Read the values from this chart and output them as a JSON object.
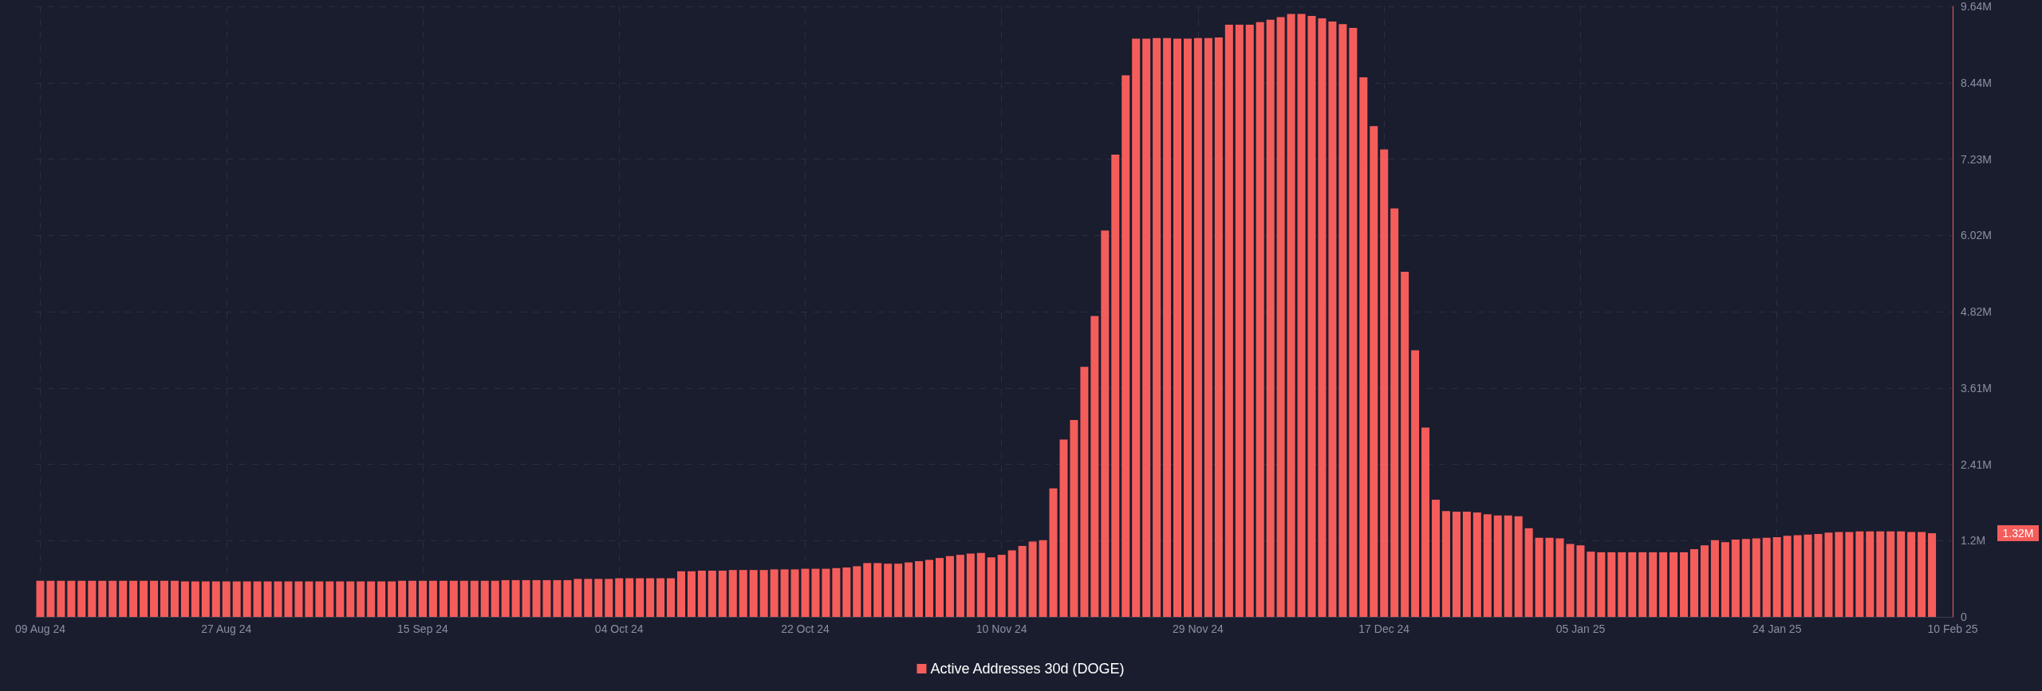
{
  "chart_data": {
    "type": "bar",
    "x": [
      "2024-08-09",
      "2024-08-10",
      "2024-08-11",
      "2024-08-12",
      "2024-08-13",
      "2024-08-14",
      "2024-08-15",
      "2024-08-16",
      "2024-08-17",
      "2024-08-18",
      "2024-08-19",
      "2024-08-20",
      "2024-08-21",
      "2024-08-22",
      "2024-08-23",
      "2024-08-24",
      "2024-08-25",
      "2024-08-26",
      "2024-08-27",
      "2024-08-28",
      "2024-08-29",
      "2024-08-30",
      "2024-08-31",
      "2024-09-01",
      "2024-09-02",
      "2024-09-03",
      "2024-09-04",
      "2024-09-05",
      "2024-09-06",
      "2024-09-07",
      "2024-09-08",
      "2024-09-09",
      "2024-09-10",
      "2024-09-11",
      "2024-09-12",
      "2024-09-13",
      "2024-09-14",
      "2024-09-15",
      "2024-09-16",
      "2024-09-17",
      "2024-09-18",
      "2024-09-19",
      "2024-09-20",
      "2024-09-21",
      "2024-09-22",
      "2024-09-23",
      "2024-09-24",
      "2024-09-25",
      "2024-09-26",
      "2024-09-27",
      "2024-09-28",
      "2024-09-29",
      "2024-09-30",
      "2024-10-01",
      "2024-10-02",
      "2024-10-03",
      "2024-10-04",
      "2024-10-05",
      "2024-10-06",
      "2024-10-07",
      "2024-10-08",
      "2024-10-09",
      "2024-10-10",
      "2024-10-11",
      "2024-10-12",
      "2024-10-13",
      "2024-10-14",
      "2024-10-15",
      "2024-10-16",
      "2024-10-17",
      "2024-10-18",
      "2024-10-19",
      "2024-10-20",
      "2024-10-21",
      "2024-10-22",
      "2024-10-23",
      "2024-10-24",
      "2024-10-25",
      "2024-10-26",
      "2024-10-27",
      "2024-10-28",
      "2024-10-29",
      "2024-10-30",
      "2024-10-31",
      "2024-11-01",
      "2024-11-02",
      "2024-11-03",
      "2024-11-04",
      "2024-11-05",
      "2024-11-06",
      "2024-11-07",
      "2024-11-08",
      "2024-11-09",
      "2024-11-10",
      "2024-11-11",
      "2024-11-12",
      "2024-11-13",
      "2024-11-14",
      "2024-11-15",
      "2024-11-16",
      "2024-11-17",
      "2024-11-18",
      "2024-11-19",
      "2024-11-20",
      "2024-11-21",
      "2024-11-22",
      "2024-11-23",
      "2024-11-24",
      "2024-11-25",
      "2024-11-26",
      "2024-11-27",
      "2024-11-28",
      "2024-11-29",
      "2024-11-30",
      "2024-12-01",
      "2024-12-02",
      "2024-12-03",
      "2024-12-04",
      "2024-12-05",
      "2024-12-06",
      "2024-12-07",
      "2024-12-08",
      "2024-12-09",
      "2024-12-10",
      "2024-12-11",
      "2024-12-12",
      "2024-12-13",
      "2024-12-14",
      "2024-12-15",
      "2024-12-16",
      "2024-12-17",
      "2024-12-18",
      "2024-12-19",
      "2024-12-20",
      "2024-12-21",
      "2024-12-22",
      "2024-12-23",
      "2024-12-24",
      "2024-12-25",
      "2024-12-26",
      "2024-12-27",
      "2024-12-28",
      "2024-12-29",
      "2024-12-30",
      "2024-12-31",
      "2025-01-01",
      "2025-01-02",
      "2025-01-03",
      "2025-01-04",
      "2025-01-05",
      "2025-01-06",
      "2025-01-07",
      "2025-01-08",
      "2025-01-09",
      "2025-01-10",
      "2025-01-11",
      "2025-01-12",
      "2025-01-13",
      "2025-01-14",
      "2025-01-15",
      "2025-01-16",
      "2025-01-17",
      "2025-01-18",
      "2025-01-19",
      "2025-01-20",
      "2025-01-21",
      "2025-01-22",
      "2025-01-23",
      "2025-01-24",
      "2025-01-25",
      "2025-01-26",
      "2025-01-27",
      "2025-01-28",
      "2025-01-29",
      "2025-01-30",
      "2025-01-31",
      "2025-02-01",
      "2025-02-02",
      "2025-02-03",
      "2025-02-04",
      "2025-02-05",
      "2025-02-06",
      "2025-02-07",
      "2025-02-08"
    ],
    "series": [
      {
        "name": "Active Addresses 30d (DOGE)",
        "color": "#f55d5b",
        "values": [
          570000,
          570000,
          570000,
          570000,
          570000,
          570000,
          570000,
          570000,
          570000,
          570000,
          570000,
          570000,
          570000,
          570000,
          560000,
          560000,
          560000,
          560000,
          560000,
          560000,
          560000,
          560000,
          560000,
          560000,
          560000,
          560000,
          560000,
          560000,
          560000,
          560000,
          560000,
          560000,
          560000,
          560000,
          560000,
          570000,
          570000,
          570000,
          570000,
          570000,
          570000,
          570000,
          570000,
          570000,
          570000,
          580000,
          580000,
          580000,
          580000,
          580000,
          580000,
          580000,
          600000,
          600000,
          600000,
          600000,
          610000,
          610000,
          610000,
          610000,
          610000,
          610000,
          720000,
          720000,
          730000,
          730000,
          730000,
          740000,
          740000,
          740000,
          740000,
          750000,
          750000,
          750000,
          760000,
          760000,
          760000,
          770000,
          780000,
          800000,
          850000,
          850000,
          840000,
          840000,
          860000,
          880000,
          900000,
          930000,
          960000,
          980000,
          1000000,
          1010000,
          940000,
          980000,
          1050000,
          1120000,
          1190000,
          1210000,
          2030000,
          2800000,
          3110000,
          3950000,
          4750000,
          6100000,
          7300000,
          8550000,
          9130000,
          9130000,
          9140000,
          9140000,
          9130000,
          9130000,
          9140000,
          9140000,
          9150000,
          9350000,
          9350000,
          9350000,
          9390000,
          9430000,
          9470000,
          9520000,
          9520000,
          9490000,
          9450000,
          9400000,
          9360000,
          9300000,
          8520000,
          7750000,
          7380000,
          6450000,
          5450000,
          4210000,
          2990000,
          1850000,
          1670000,
          1660000,
          1660000,
          1650000,
          1620000,
          1600000,
          1600000,
          1590000,
          1400000,
          1250000,
          1250000,
          1240000,
          1150000,
          1130000,
          1030000,
          1020000,
          1020000,
          1020000,
          1020000,
          1020000,
          1020000,
          1020000,
          1020000,
          1020000,
          1070000,
          1130000,
          1210000,
          1180000,
          1220000,
          1230000,
          1240000,
          1250000,
          1260000,
          1280000,
          1290000,
          1300000,
          1310000,
          1330000,
          1340000,
          1340000,
          1350000,
          1350000,
          1350000,
          1350000,
          1350000,
          1340000,
          1340000,
          1320000
        ]
      }
    ],
    "xlim": [
      "2024-08-08T12:00",
      "2025-02-10"
    ],
    "xticks": [
      {
        "value": "2024-08-09",
        "label": "09 Aug 24"
      },
      {
        "value": "2024-08-27",
        "label": "27 Aug 24"
      },
      {
        "value": "2024-09-15",
        "label": "15 Sep 24"
      },
      {
        "value": "2024-10-04",
        "label": "04 Oct 24"
      },
      {
        "value": "2024-10-22",
        "label": "22 Oct 24"
      },
      {
        "value": "2024-11-10",
        "label": "10 Nov 24"
      },
      {
        "value": "2024-11-29",
        "label": "29 Nov 24"
      },
      {
        "value": "2024-12-17",
        "label": "17 Dec 24"
      },
      {
        "value": "2025-01-05",
        "label": "05 Jan 25"
      },
      {
        "value": "2025-01-24",
        "label": "24 Jan 25"
      },
      {
        "value": "2025-02-10",
        "label": "10 Feb 25"
      }
    ],
    "ylim": [
      0,
      9640000
    ],
    "yticks": [
      0,
      {
        "value": 1205000,
        "label": "1.2M"
      },
      {
        "value": 2410000,
        "label": "2.41M"
      },
      {
        "value": 3615000,
        "label": "3.61M"
      },
      {
        "value": 4820000,
        "label": "4.82M"
      },
      {
        "value": 6025000,
        "label": "6.02M"
      },
      {
        "value": 7230000,
        "label": "7.23M"
      },
      {
        "value": 8435000,
        "label": "8.44M"
      },
      {
        "value": 9640000,
        "label": "9.64M"
      }
    ],
    "annotations": [
      "1.32M"
    ],
    "grid": true,
    "legend": "bottom"
  }
}
